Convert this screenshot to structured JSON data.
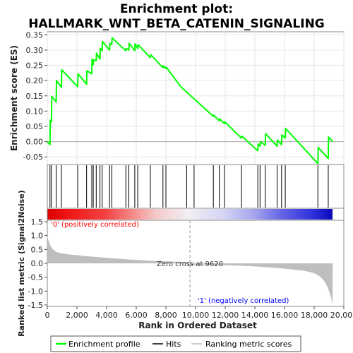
{
  "chart_data": {
    "type": "line",
    "title_line1": "Enrichment plot:",
    "title_line2": "HALLMARK_WNT_BETA_CATENIN_SIGNALING",
    "ylabel_top": "Enrichment score (ES)",
    "ylabel_bottom": "Ranked list metric (Signal2Noise)",
    "xlabel": "Rank in Ordered Dataset",
    "xlim": [
      0,
      20000
    ],
    "x_ticks": [
      0,
      2000,
      4000,
      6000,
      8000,
      10000,
      12000,
      14000,
      16000,
      18000,
      20000
    ],
    "x_tick_labels": [
      "0",
      "2,000",
      "4,000",
      "6,000",
      "8,000",
      "10,000",
      "12,000",
      "14,000",
      "16,000",
      "18,000",
      "20,000"
    ],
    "es_ylim": [
      -0.075,
      0.36
    ],
    "es_ticks": [
      -0.05,
      0.0,
      0.05,
      0.1,
      0.15,
      0.2,
      0.25,
      0.3,
      0.35
    ],
    "es_tick_labels": [
      "-0.05",
      "0.00",
      "0.05",
      "0.10",
      "0.15",
      "0.20",
      "0.25",
      "0.30",
      "0.35"
    ],
    "metric_ylim": [
      -1.55,
      1.55
    ],
    "metric_ticks": [
      -1.5,
      -1.0,
      -0.5,
      0.0,
      0.5,
      1.0,
      1.5
    ],
    "metric_tick_labels": [
      "-1.5",
      "-1.0",
      "-0.5",
      "0.0",
      "0.5",
      "1.0",
      "1.5"
    ],
    "series": [
      {
        "name": "Enrichment profile",
        "color": "#00ff00",
        "x": [
          0,
          180,
          200,
          280,
          300,
          600,
          620,
          950,
          970,
          2050,
          2070,
          2650,
          2670,
          3000,
          3020,
          3100,
          3120,
          3300,
          3320,
          3550,
          3570,
          3700,
          3720,
          4200,
          4220,
          4350,
          4370,
          5300,
          5320,
          5500,
          5520,
          5900,
          5920,
          6100,
          6120,
          6950,
          6970,
          7800,
          7820,
          8000,
          8020,
          9000,
          11200,
          11220,
          11600,
          11620,
          11950,
          11970,
          13100,
          13120,
          14200,
          14220,
          14350,
          14370,
          14700,
          14720,
          15500,
          15520,
          15800,
          15820,
          16050,
          16070,
          18250,
          18270,
          18950,
          18970,
          19250
        ],
        "y": [
          0.0,
          -0.01,
          0.07,
          0.065,
          0.148,
          0.13,
          0.2,
          0.178,
          0.235,
          0.18,
          0.222,
          0.188,
          0.232,
          0.222,
          0.27,
          0.252,
          0.268,
          0.265,
          0.29,
          0.27,
          0.305,
          0.298,
          0.328,
          0.3,
          0.322,
          0.318,
          0.34,
          0.298,
          0.305,
          0.3,
          0.322,
          0.298,
          0.32,
          0.305,
          0.318,
          0.275,
          0.285,
          0.242,
          0.248,
          0.24,
          0.244,
          0.18,
          0.083,
          0.087,
          0.068,
          0.075,
          0.059,
          0.065,
          0.011,
          0.018,
          -0.03,
          -0.008,
          -0.015,
          0.0,
          -0.012,
          0.026,
          -0.015,
          0.005,
          -0.01,
          0.022,
          0.012,
          0.043,
          -0.072,
          -0.019,
          -0.055,
          0.015,
          0.0
        ]
      }
    ],
    "hits": [
      180,
      280,
      600,
      950,
      2050,
      2650,
      3000,
      3100,
      3300,
      3550,
      3700,
      4200,
      4350,
      5300,
      5500,
      5900,
      6100,
      6950,
      7800,
      8000,
      9400,
      9900,
      11200,
      11600,
      11950,
      13100,
      14200,
      14350,
      14700,
      15500,
      15800,
      16050,
      18250,
      18950
    ],
    "zero_cross": 9620,
    "zero_cross_label": "Zero cross at 9620",
    "positive_label": "'0' (positively correlated)",
    "negative_label": "'1' (negatively correlated)",
    "legend": {
      "items": [
        {
          "label": "Enrichment profile",
          "color": "#00ff00"
        },
        {
          "label": "Hits",
          "color": "#000000"
        },
        {
          "label": "Ranking metric scores",
          "color": "#bbbbbb"
        }
      ]
    },
    "colors": {
      "es_line": "#00ff00",
      "hit": "#000000",
      "metric_fill": "#bebebe",
      "positive_text": "#ff0000",
      "negative_text": "#0000ff"
    }
  }
}
